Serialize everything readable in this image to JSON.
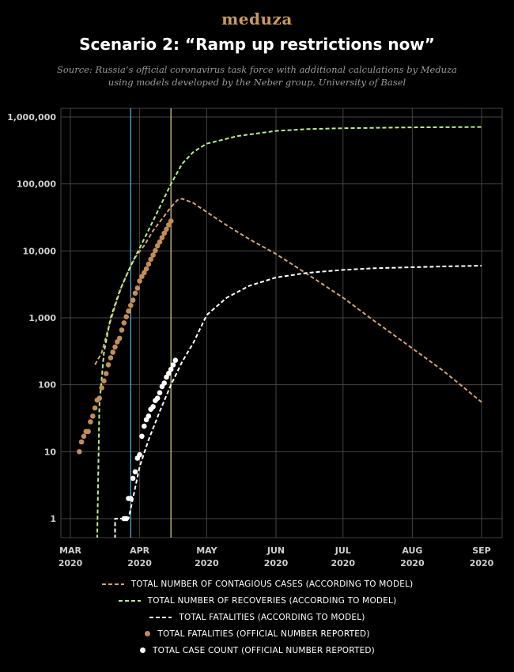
{
  "brand": {
    "logo_text": "meduza"
  },
  "header": {
    "title": "Scenario 2: “Ramp up restrictions now”",
    "source_line1": "Source: Russia’s official coronavirus task force with additional calculations by Meduza",
    "source_line2": "using models developed by the Neber group, University of Basel"
  },
  "colors": {
    "background": "#000000",
    "grid": "#444444",
    "contagious": "#d2a276",
    "recoveries": "#b7ef8c",
    "fatalities_model": "#ffffff",
    "fatalities_official": "#c28d5b",
    "cases_official": "#ffffff",
    "vline_blue": "#5ab8e6",
    "vline_yellow": "#e4d48e"
  },
  "chart_data": {
    "type": "line",
    "title": "Scenario 2: “Ramp up restrictions now”",
    "y_scale": "log",
    "ylim": [
      0.5,
      1000000
    ],
    "xlim": [
      "2020-03-01",
      "2020-09-01"
    ],
    "y_ticks": [
      1,
      10,
      100,
      1000,
      10000,
      100000,
      1000000
    ],
    "y_tick_labels": [
      "1",
      "10",
      "100",
      "1,000",
      "10,000",
      "100,000",
      "1,000,000"
    ],
    "x_ticks": [
      {
        "date": "2020-03-01",
        "line1": "MAR",
        "line2": "2020"
      },
      {
        "date": "2020-04-01",
        "line1": "APR",
        "line2": "2020"
      },
      {
        "date": "2020-05-01",
        "line1": "MAY",
        "line2": "2020"
      },
      {
        "date": "2020-06-01",
        "line1": "JUN",
        "line2": "2020"
      },
      {
        "date": "2020-07-01",
        "line1": "JUL",
        "line2": "2020"
      },
      {
        "date": "2020-08-01",
        "line1": "AUG",
        "line2": "2020"
      },
      {
        "date": "2020-09-01",
        "line1": "SEP",
        "line2": "2020"
      }
    ],
    "grid": true,
    "vertical_markers": [
      {
        "date": "2020-03-28",
        "color": "#5ab8e6"
      },
      {
        "date": "2020-04-15",
        "color": "#e4d48e"
      }
    ],
    "series": [
      {
        "name": "TOTAL NUMBER OF CONTAGIOUS CASES (ACCORDING TO MODEL)",
        "style": "dashed",
        "color": "#d2a276",
        "points": [
          [
            "2020-03-12",
            200
          ],
          [
            "2020-03-15",
            300
          ],
          [
            "2020-03-18",
            700
          ],
          [
            "2020-03-21",
            1500
          ],
          [
            "2020-03-24",
            3000
          ],
          [
            "2020-03-27",
            5000
          ],
          [
            "2020-03-30",
            8000
          ],
          [
            "2020-04-03",
            12000
          ],
          [
            "2020-04-07",
            20000
          ],
          [
            "2020-04-11",
            30000
          ],
          [
            "2020-04-15",
            45000
          ],
          [
            "2020-04-18",
            58000
          ],
          [
            "2020-04-20",
            60000
          ],
          [
            "2020-04-25",
            52000
          ],
          [
            "2020-05-01",
            38000
          ],
          [
            "2020-05-10",
            24000
          ],
          [
            "2020-05-20",
            15000
          ],
          [
            "2020-06-01",
            9000
          ],
          [
            "2020-06-15",
            4500
          ],
          [
            "2020-07-01",
            2000
          ],
          [
            "2020-07-15",
            900
          ],
          [
            "2020-08-01",
            350
          ],
          [
            "2020-08-15",
            160
          ],
          [
            "2020-09-01",
            55
          ]
        ]
      },
      {
        "name": "TOTAL NUMBER OF RECOVERIES (ACCORDING TO MODEL)",
        "style": "dashed",
        "color": "#b7ef8c",
        "points": [
          [
            "2020-03-13",
            0.5
          ],
          [
            "2020-03-14",
            50
          ],
          [
            "2020-03-16",
            300
          ],
          [
            "2020-03-19",
            1000
          ],
          [
            "2020-03-23",
            2500
          ],
          [
            "2020-03-28",
            6000
          ],
          [
            "2020-04-03",
            15000
          ],
          [
            "2020-04-10",
            45000
          ],
          [
            "2020-04-15",
            100000
          ],
          [
            "2020-04-20",
            200000
          ],
          [
            "2020-04-25",
            300000
          ],
          [
            "2020-05-01",
            400000
          ],
          [
            "2020-05-15",
            520000
          ],
          [
            "2020-06-01",
            620000
          ],
          [
            "2020-06-15",
            660000
          ],
          [
            "2020-07-01",
            680000
          ],
          [
            "2020-08-01",
            700000
          ],
          [
            "2020-09-01",
            710000
          ]
        ]
      },
      {
        "name": "TOTAL FATALITIES (ACCORDING TO MODEL)",
        "style": "dashed",
        "color": "#ffffff",
        "points": [
          [
            "2020-03-21",
            0.5
          ],
          [
            "2020-03-21",
            1
          ],
          [
            "2020-03-27",
            1
          ],
          [
            "2020-03-29",
            2
          ],
          [
            "2020-04-01",
            6
          ],
          [
            "2020-04-05",
            15
          ],
          [
            "2020-04-10",
            40
          ],
          [
            "2020-04-15",
            100
          ],
          [
            "2020-04-20",
            220
          ],
          [
            "2020-04-25",
            420
          ],
          [
            "2020-05-01",
            1100
          ],
          [
            "2020-05-10",
            2000
          ],
          [
            "2020-05-20",
            3000
          ],
          [
            "2020-06-01",
            4000
          ],
          [
            "2020-06-15",
            4700
          ],
          [
            "2020-07-01",
            5200
          ],
          [
            "2020-07-15",
            5500
          ],
          [
            "2020-08-01",
            5700
          ],
          [
            "2020-08-15",
            5850
          ],
          [
            "2020-09-01",
            6000
          ]
        ]
      },
      {
        "name": "TOTAL FATALITIES (OFFICIAL NUMBER REPORTED)",
        "style": "dots",
        "color": "#c28d5b",
        "points": [
          [
            "2020-03-05",
            10
          ],
          [
            "2020-03-06",
            14
          ],
          [
            "2020-03-07",
            17
          ],
          [
            "2020-03-08",
            20
          ],
          [
            "2020-03-09",
            20
          ],
          [
            "2020-03-10",
            28
          ],
          [
            "2020-03-11",
            34
          ],
          [
            "2020-03-12",
            45
          ],
          [
            "2020-03-13",
            59
          ],
          [
            "2020-03-14",
            63
          ],
          [
            "2020-03-15",
            90
          ],
          [
            "2020-03-16",
            114
          ],
          [
            "2020-03-17",
            147
          ],
          [
            "2020-03-18",
            199
          ],
          [
            "2020-03-19",
            253
          ],
          [
            "2020-03-20",
            306
          ],
          [
            "2020-03-21",
            367
          ],
          [
            "2020-03-22",
            438
          ],
          [
            "2020-03-23",
            495
          ],
          [
            "2020-03-24",
            658
          ],
          [
            "2020-03-25",
            840
          ],
          [
            "2020-03-26",
            1036
          ],
          [
            "2020-03-27",
            1264
          ],
          [
            "2020-03-28",
            1534
          ],
          [
            "2020-03-29",
            1836
          ],
          [
            "2020-03-30",
            2337
          ],
          [
            "2020-03-31",
            2777
          ],
          [
            "2020-04-01",
            3548
          ],
          [
            "2020-04-02",
            4149
          ],
          [
            "2020-04-03",
            4731
          ],
          [
            "2020-04-04",
            5389
          ],
          [
            "2020-04-05",
            6343
          ],
          [
            "2020-04-06",
            7497
          ],
          [
            "2020-04-07",
            8672
          ],
          [
            "2020-04-08",
            10131
          ],
          [
            "2020-04-09",
            11917
          ],
          [
            "2020-04-10",
            13584
          ],
          [
            "2020-04-11",
            15770
          ],
          [
            "2020-04-12",
            18328
          ],
          [
            "2020-04-13",
            21102
          ],
          [
            "2020-04-14",
            24490
          ],
          [
            "2020-04-15",
            27938
          ]
        ]
      },
      {
        "name": "TOTAL CASE COUNT (OFFICIAL NUMBER REPORTED)",
        "style": "dots",
        "color": "#ffffff",
        "points": [
          [
            "2020-03-25",
            1
          ],
          [
            "2020-03-26",
            1
          ],
          [
            "2020-03-27",
            2
          ],
          [
            "2020-03-28",
            2
          ],
          [
            "2020-03-29",
            4
          ],
          [
            "2020-03-30",
            5
          ],
          [
            "2020-03-31",
            8
          ],
          [
            "2020-04-01",
            9
          ],
          [
            "2020-04-02",
            17
          ],
          [
            "2020-04-03",
            24
          ],
          [
            "2020-04-04",
            30
          ],
          [
            "2020-04-05",
            34
          ],
          [
            "2020-04-06",
            43
          ],
          [
            "2020-04-07",
            47
          ],
          [
            "2020-04-08",
            58
          ],
          [
            "2020-04-09",
            63
          ],
          [
            "2020-04-10",
            76
          ],
          [
            "2020-04-11",
            94
          ],
          [
            "2020-04-12",
            106
          ],
          [
            "2020-04-13",
            130
          ],
          [
            "2020-04-14",
            148
          ],
          [
            "2020-04-15",
            170
          ],
          [
            "2020-04-16",
            198
          ],
          [
            "2020-04-17",
            232
          ]
        ]
      }
    ]
  },
  "legend": [
    {
      "label": "TOTAL NUMBER OF CONTAGIOUS CASES (ACCORDING TO MODEL)",
      "marker": "dash",
      "color": "#d2a276"
    },
    {
      "label": "TOTAL NUMBER OF RECOVERIES (ACCORDING TO MODEL)",
      "marker": "dash",
      "color": "#b7ef8c"
    },
    {
      "label": "TOTAL FATALITIES (ACCORDING TO MODEL)",
      "marker": "dash",
      "color": "#ffffff"
    },
    {
      "label": "TOTAL FATALITIES (OFFICIAL NUMBER REPORTED)",
      "marker": "dot",
      "color": "#c28d5b"
    },
    {
      "label": "TOTAL CASE COUNT (OFFICIAL NUMBER REPORTED)",
      "marker": "dot",
      "color": "#ffffff"
    }
  ]
}
